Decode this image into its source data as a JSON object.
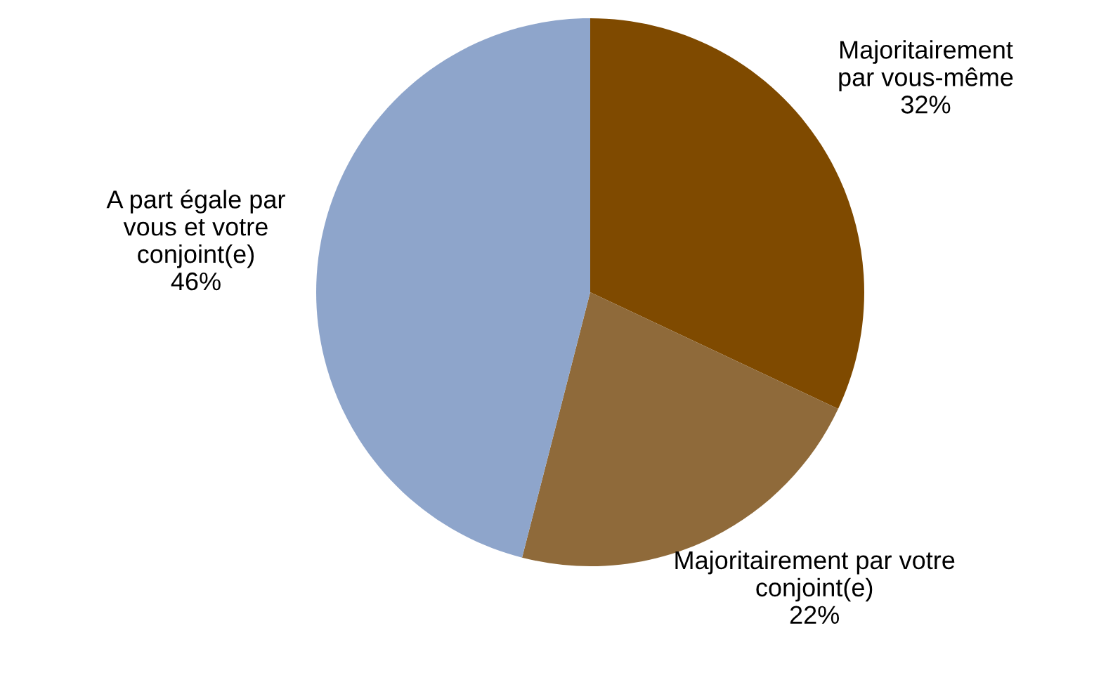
{
  "chart_data": {
    "type": "pie",
    "categories": [
      "Majoritairement\npar vous-même",
      "Majoritairement par votre\nconjoint(e)",
      "A part égale par\nvous et votre\nconjoint(e)"
    ],
    "values": [
      32,
      22,
      46
    ],
    "value_labels": [
      "32%",
      "22%",
      "46%"
    ],
    "colors": [
      "#7f4a00",
      "#8f6a3a",
      "#8ea5cb"
    ],
    "legend": false
  }
}
